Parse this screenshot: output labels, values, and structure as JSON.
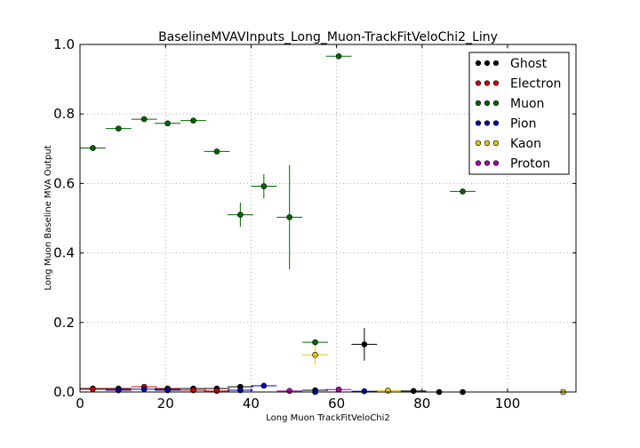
{
  "chart_data": {
    "type": "scatter",
    "title": "BaselineMVAVInputs_Long_Muon-TrackFitVeloChi2_Liny",
    "xlabel": "Long Muon TrackFitVeloChi2",
    "ylabel": "Long Muon Baseline MVA Output",
    "xlim": [
      0,
      116
    ],
    "ylim": [
      0,
      1.0
    ],
    "xticks": [
      "0",
      "20",
      "40",
      "60",
      "80",
      "100"
    ],
    "yticks": [
      "0.0",
      "0.2",
      "0.4",
      "0.6",
      "0.8",
      "1.0"
    ],
    "grid": true,
    "legend_position": "top-right",
    "series": [
      {
        "name": "Ghost",
        "color": "#000000",
        "points": [
          {
            "x": 3,
            "xerr": 3,
            "y": 0.01,
            "yerr": 0.0
          },
          {
            "x": 9,
            "xerr": 3,
            "y": 0.01,
            "yerr": 0.0
          },
          {
            "x": 20.5,
            "xerr": 3,
            "y": 0.01,
            "yerr": 0.0
          },
          {
            "x": 26.5,
            "xerr": 3,
            "y": 0.01,
            "yerr": 0.0
          },
          {
            "x": 32,
            "xerr": 3,
            "y": 0.01,
            "yerr": 0.0
          },
          {
            "x": 37.5,
            "xerr": 3,
            "y": 0.015,
            "yerr": 0.0
          },
          {
            "x": 55,
            "xerr": 3,
            "y": 0.005,
            "yerr": 0.0
          },
          {
            "x": 66.5,
            "xerr": 3,
            "y": 0.137,
            "yerr": 0.047
          },
          {
            "x": 78,
            "xerr": 3,
            "y": 0.003,
            "yerr": 0.0
          },
          {
            "x": 84,
            "xerr": 3,
            "y": 0.0,
            "yerr": 0.0
          },
          {
            "x": 89.5,
            "xerr": 3,
            "y": 0.0,
            "yerr": 0.0
          }
        ]
      },
      {
        "name": "Electron",
        "color": "#cc0000",
        "points": [
          {
            "x": 3,
            "xerr": 3,
            "y": 0.008,
            "yerr": 0.0
          },
          {
            "x": 9,
            "xerr": 3,
            "y": 0.008,
            "yerr": 0.0
          },
          {
            "x": 15,
            "xerr": 3,
            "y": 0.015,
            "yerr": 0.0
          },
          {
            "x": 20.5,
            "xerr": 3,
            "y": 0.008,
            "yerr": 0.0
          },
          {
            "x": 26.5,
            "xerr": 3,
            "y": 0.005,
            "yerr": 0.0
          },
          {
            "x": 32,
            "xerr": 3,
            "y": 0.003,
            "yerr": 0.0
          }
        ]
      },
      {
        "name": "Muon",
        "color": "#006600",
        "points": [
          {
            "x": 3,
            "xerr": 3,
            "y": 0.702,
            "yerr": 0.0
          },
          {
            "x": 9,
            "xerr": 3,
            "y": 0.758,
            "yerr": 0.0
          },
          {
            "x": 15,
            "xerr": 3,
            "y": 0.785,
            "yerr": 0.0
          },
          {
            "x": 20.5,
            "xerr": 3,
            "y": 0.773,
            "yerr": 0.0
          },
          {
            "x": 26.5,
            "xerr": 3,
            "y": 0.781,
            "yerr": 0.0
          },
          {
            "x": 32,
            "xerr": 3,
            "y": 0.692,
            "yerr": 0.008
          },
          {
            "x": 37.5,
            "xerr": 3,
            "y": 0.51,
            "yerr": 0.035
          },
          {
            "x": 43,
            "xerr": 3,
            "y": 0.592,
            "yerr": 0.035
          },
          {
            "x": 49,
            "xerr": 3,
            "y": 0.503,
            "yerr": 0.15
          },
          {
            "x": 55,
            "xerr": 3,
            "y": 0.143,
            "yerr": 0.0
          },
          {
            "x": 60.5,
            "xerr": 3,
            "y": 0.966,
            "yerr": 0.0
          },
          {
            "x": 89.5,
            "xerr": 3,
            "y": 0.577,
            "yerr": 0.0
          }
        ]
      },
      {
        "name": "Pion",
        "color": "#0000aa",
        "points": [
          {
            "x": 9,
            "xerr": 3,
            "y": 0.005,
            "yerr": 0.0
          },
          {
            "x": 15,
            "xerr": 3,
            "y": 0.008,
            "yerr": 0.0
          },
          {
            "x": 20.5,
            "xerr": 3,
            "y": 0.005,
            "yerr": 0.0
          },
          {
            "x": 37.5,
            "xerr": 3,
            "y": 0.005,
            "yerr": 0.0
          },
          {
            "x": 43,
            "xerr": 3,
            "y": 0.018,
            "yerr": 0.0
          },
          {
            "x": 55,
            "xerr": 3,
            "y": 0.0,
            "yerr": 0.0
          },
          {
            "x": 66.5,
            "xerr": 3,
            "y": 0.002,
            "yerr": 0.0
          }
        ]
      },
      {
        "name": "Kaon",
        "color": "#e6c800",
        "points": [
          {
            "x": 55,
            "xerr": 3,
            "y": 0.107,
            "yerr": 0.028
          },
          {
            "x": 72,
            "xerr": 3,
            "y": 0.004,
            "yerr": 0.0
          },
          {
            "x": 113,
            "xerr": 3,
            "y": 0.0,
            "yerr": 0.0
          }
        ]
      },
      {
        "name": "Proton",
        "color": "#aa00aa",
        "points": [
          {
            "x": 49,
            "xerr": 3,
            "y": 0.003,
            "yerr": 0.0
          },
          {
            "x": 60.5,
            "xerr": 3,
            "y": 0.007,
            "yerr": 0.0
          }
        ]
      }
    ]
  }
}
